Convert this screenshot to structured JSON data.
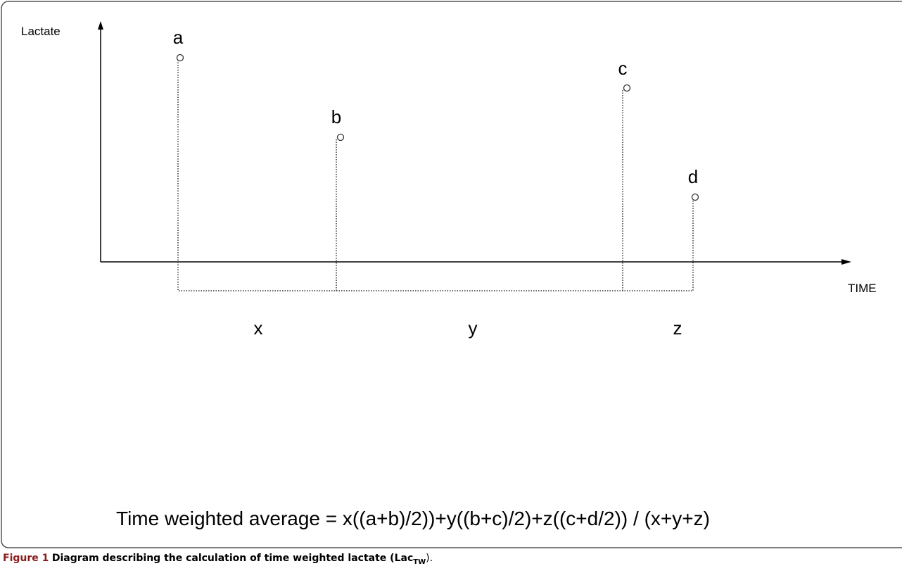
{
  "axes": {
    "y_label": "Lactate",
    "x_label": "TIME"
  },
  "points": [
    {
      "label": "a"
    },
    {
      "label": "b"
    },
    {
      "label": "c"
    },
    {
      "label": "d"
    }
  ],
  "intervals": [
    {
      "label": "x"
    },
    {
      "label": "y"
    },
    {
      "label": "z"
    }
  ],
  "formula": "Time weighted average = x((a+b)/2))+y((b+c)/2)+z((c+d/2)) / (x+y+z)",
  "caption": {
    "label": "Figure 1",
    "text": "Diagram describing the calculation of time weighted lactate (Lac",
    "subscript": "TW",
    "end": ")."
  }
}
